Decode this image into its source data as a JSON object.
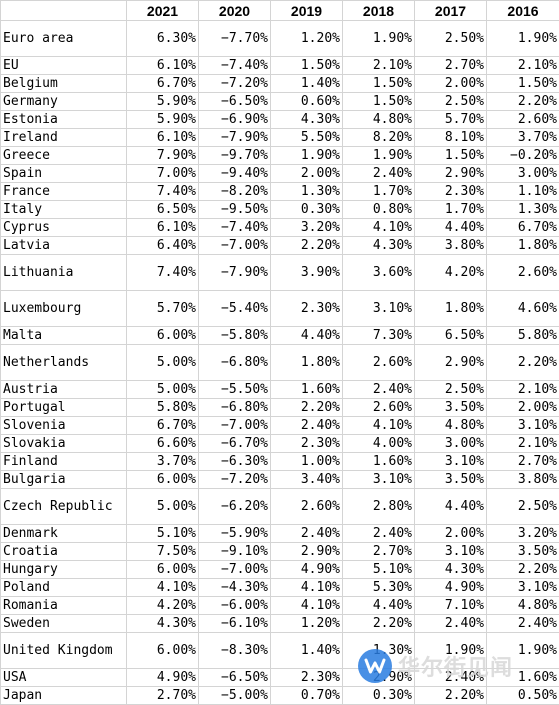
{
  "header": [
    "",
    "2021",
    "2020",
    "2019",
    "2018",
    "2017",
    "2016"
  ],
  "rows": [
    {
      "country": "Euro area",
      "values": [
        "6.30%",
        "−7.70%",
        "1.20%",
        "1.90%",
        "2.50%",
        "1.90%"
      ],
      "tall": "h36"
    },
    {
      "country": "EU",
      "values": [
        "6.10%",
        "−7.40%",
        "1.50%",
        "2.10%",
        "2.70%",
        "2.10%"
      ],
      "tall": "h17"
    },
    {
      "country": "Belgium",
      "values": [
        "6.70%",
        "−7.20%",
        "1.40%",
        "1.50%",
        "2.00%",
        "1.50%"
      ],
      "tall": "h17"
    },
    {
      "country": "Germany",
      "values": [
        "5.90%",
        "−6.50%",
        "0.60%",
        "1.50%",
        "2.50%",
        "2.20%"
      ],
      "tall": "h17"
    },
    {
      "country": "Estonia",
      "values": [
        "5.90%",
        "−6.90%",
        "4.30%",
        "4.80%",
        "5.70%",
        "2.60%"
      ],
      "tall": "h17"
    },
    {
      "country": "Ireland",
      "values": [
        "6.10%",
        "−7.90%",
        "5.50%",
        "8.20%",
        "8.10%",
        "3.70%"
      ],
      "tall": "h17"
    },
    {
      "country": "Greece",
      "values": [
        "7.90%",
        "−9.70%",
        "1.90%",
        "1.90%",
        "1.50%",
        "−0.20%"
      ],
      "tall": "h17"
    },
    {
      "country": "Spain",
      "values": [
        "7.00%",
        "−9.40%",
        "2.00%",
        "2.40%",
        "2.90%",
        "3.00%"
      ],
      "tall": "h17"
    },
    {
      "country": "France",
      "values": [
        "7.40%",
        "−8.20%",
        "1.30%",
        "1.70%",
        "2.30%",
        "1.10%"
      ],
      "tall": "h17"
    },
    {
      "country": "Italy",
      "values": [
        "6.50%",
        "−9.50%",
        "0.30%",
        "0.80%",
        "1.70%",
        "1.30%"
      ],
      "tall": "h17"
    },
    {
      "country": "Cyprus",
      "values": [
        "6.10%",
        "−7.40%",
        "3.20%",
        "4.10%",
        "4.40%",
        "6.70%"
      ],
      "tall": "h17"
    },
    {
      "country": "Latvia",
      "values": [
        "6.40%",
        "−7.00%",
        "2.20%",
        "4.30%",
        "3.80%",
        "1.80%"
      ],
      "tall": "h17"
    },
    {
      "country": "Lithuania",
      "values": [
        "7.40%",
        "−7.90%",
        "3.90%",
        "3.60%",
        "4.20%",
        "2.60%"
      ],
      "tall": "h36"
    },
    {
      "country": "Luxembourg",
      "values": [
        "5.70%",
        "−5.40%",
        "2.30%",
        "3.10%",
        "1.80%",
        "4.60%"
      ],
      "tall": "h36"
    },
    {
      "country": "Malta",
      "values": [
        "6.00%",
        "−5.80%",
        "4.40%",
        "7.30%",
        "6.50%",
        "5.80%"
      ],
      "tall": "h17"
    },
    {
      "country": "Netherlands",
      "values": [
        "5.00%",
        "−6.80%",
        "1.80%",
        "2.60%",
        "2.90%",
        "2.20%"
      ],
      "tall": "h36"
    },
    {
      "country": "Austria",
      "values": [
        "5.00%",
        "−5.50%",
        "1.60%",
        "2.40%",
        "2.50%",
        "2.10%"
      ],
      "tall": "h17"
    },
    {
      "country": "Portugal",
      "values": [
        "5.80%",
        "−6.80%",
        "2.20%",
        "2.60%",
        "3.50%",
        "2.00%"
      ],
      "tall": "h17"
    },
    {
      "country": "Slovenia",
      "values": [
        "6.70%",
        "−7.00%",
        "2.40%",
        "4.10%",
        "4.80%",
        "3.10%"
      ],
      "tall": "h17"
    },
    {
      "country": "Slovakia",
      "values": [
        "6.60%",
        "−6.70%",
        "2.30%",
        "4.00%",
        "3.00%",
        "2.10%"
      ],
      "tall": "h17"
    },
    {
      "country": "Finland",
      "values": [
        "3.70%",
        "−6.30%",
        "1.00%",
        "1.60%",
        "3.10%",
        "2.70%"
      ],
      "tall": "h17"
    },
    {
      "country": "Bulgaria",
      "values": [
        "6.00%",
        "−7.20%",
        "3.40%",
        "3.10%",
        "3.50%",
        "3.80%"
      ],
      "tall": "h17"
    },
    {
      "country": "Czech Republic",
      "values": [
        "5.00%",
        "−6.20%",
        "2.60%",
        "2.80%",
        "4.40%",
        "2.50%"
      ],
      "tall": "h36"
    },
    {
      "country": "Denmark",
      "values": [
        "5.10%",
        "−5.90%",
        "2.40%",
        "2.40%",
        "2.00%",
        "3.20%"
      ],
      "tall": "h17"
    },
    {
      "country": "Croatia",
      "values": [
        "7.50%",
        "−9.10%",
        "2.90%",
        "2.70%",
        "3.10%",
        "3.50%"
      ],
      "tall": "h17"
    },
    {
      "country": "Hungary",
      "values": [
        "6.00%",
        "−7.00%",
        "4.90%",
        "5.10%",
        "4.30%",
        "2.20%"
      ],
      "tall": "h17"
    },
    {
      "country": "Poland",
      "values": [
        "4.10%",
        "−4.30%",
        "4.10%",
        "5.30%",
        "4.90%",
        "3.10%"
      ],
      "tall": "h17"
    },
    {
      "country": "Romania",
      "values": [
        "4.20%",
        "−6.00%",
        "4.10%",
        "4.40%",
        "7.10%",
        "4.80%"
      ],
      "tall": "h17"
    },
    {
      "country": "Sweden",
      "values": [
        "4.30%",
        "−6.10%",
        "1.20%",
        "2.20%",
        "2.40%",
        "2.40%"
      ],
      "tall": "h17"
    },
    {
      "country": "United Kingdom",
      "values": [
        "6.00%",
        "−8.30%",
        "1.40%",
        "1.30%",
        "1.90%",
        "1.90%"
      ],
      "tall": "h36"
    },
    {
      "country": "USA",
      "values": [
        "4.90%",
        "−6.50%",
        "2.30%",
        "2.90%",
        "2.40%",
        "1.60%"
      ],
      "tall": "h17"
    },
    {
      "country": "Japan",
      "values": [
        "2.70%",
        "−5.00%",
        "0.70%",
        "0.30%",
        "2.20%",
        "0.50%"
      ],
      "tall": "h17"
    }
  ],
  "watermark": {
    "logo_letter": "W",
    "text": "华尔街见闻",
    "logo_color": "#2a7de1"
  }
}
